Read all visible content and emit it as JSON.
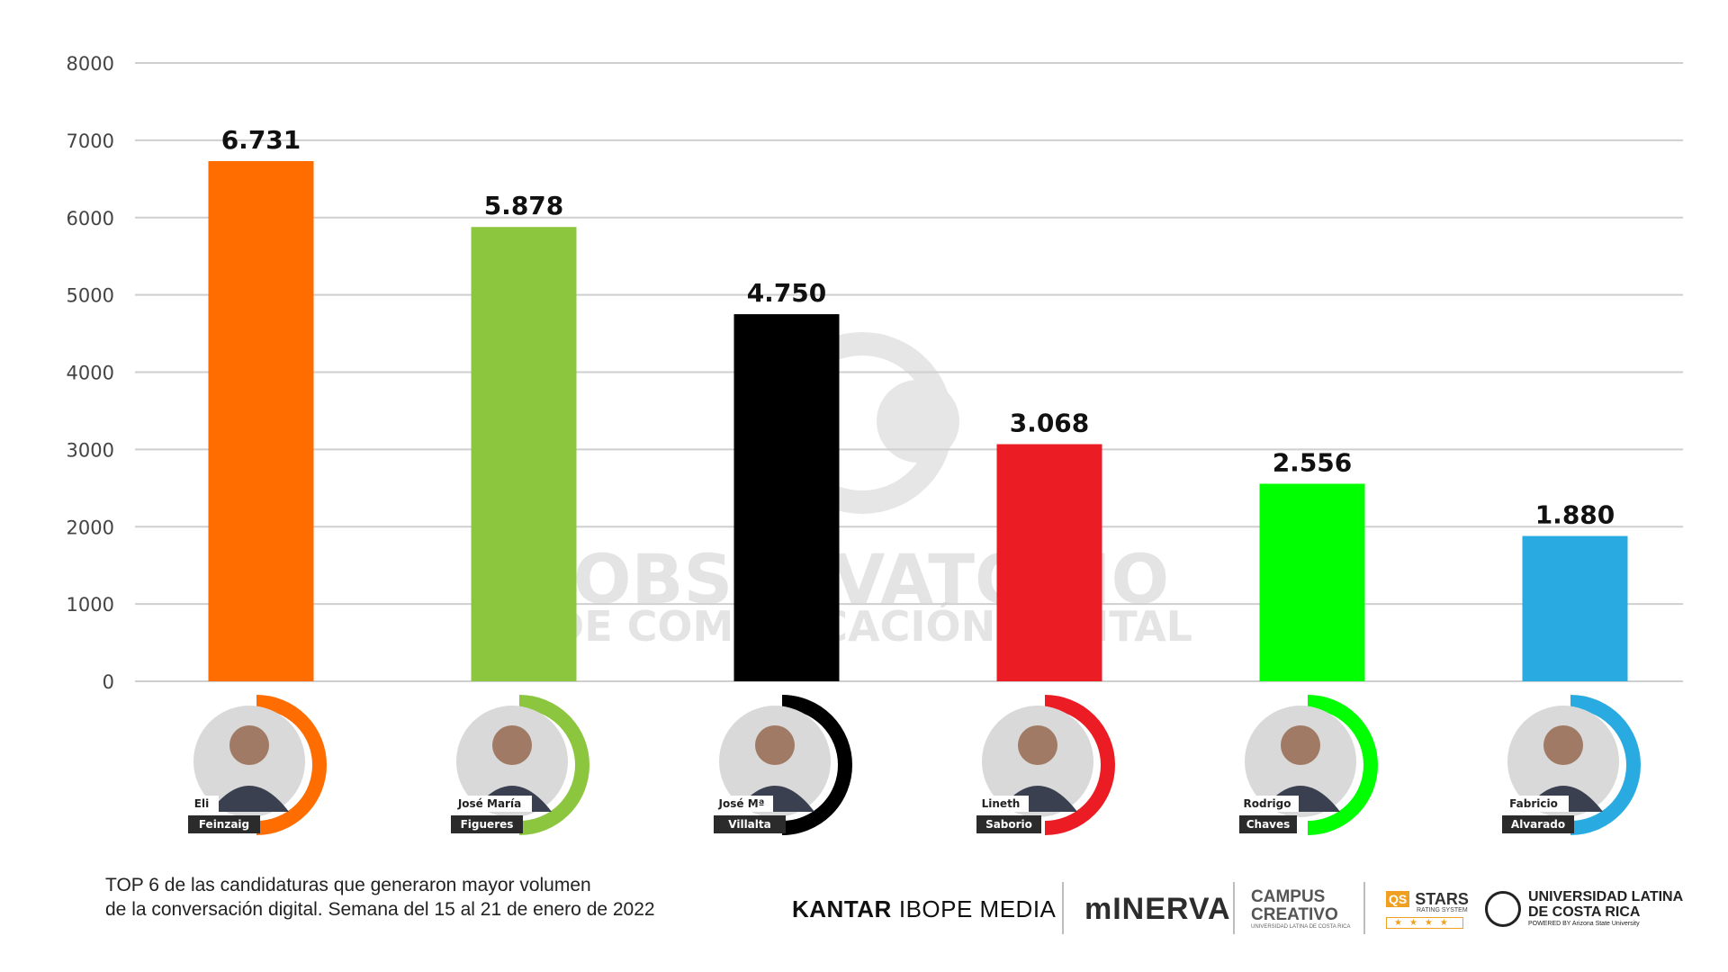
{
  "chart_data": {
    "type": "bar",
    "categories": [
      "Eli Feinzaig",
      "José María Figueres",
      "José Mª Villalta",
      "Lineth Saborío",
      "Rodrigo Chaves",
      "Fabricio Alvarado"
    ],
    "values": [
      6731,
      5878,
      4750,
      3068,
      2556,
      1880
    ],
    "value_labels": [
      "6.731",
      "5.878",
      "4.750",
      "3.068",
      "2.556",
      "1.880"
    ],
    "colors": [
      "#ff6d00",
      "#8cc63f",
      "#000000",
      "#ec1c24",
      "#00ff00",
      "#29abe2"
    ],
    "yticks": [
      0,
      1000,
      2000,
      3000,
      4000,
      5000,
      6000,
      7000,
      8000
    ],
    "ylim": [
      0,
      8000
    ],
    "grid": true,
    "title": "",
    "xlabel": "",
    "ylabel": ""
  },
  "candidates": [
    {
      "first": "Eli",
      "last": "Feinzaig"
    },
    {
      "first": "José María",
      "last": "Figueres"
    },
    {
      "first": "José Mª",
      "last": "Villalta"
    },
    {
      "first": "Lineth",
      "last": "Saborio"
    },
    {
      "first": "Rodrigo",
      "last": "Chaves"
    },
    {
      "first": "Fabricio",
      "last": "Alvarado"
    }
  ],
  "watermark": {
    "line1": "OBSERVATORIO",
    "line2": "DE COMUNICACIÓN DIGITAL"
  },
  "caption": {
    "line1": "TOP 6 de las candidaturas que generaron mayor volumen",
    "line2": "de la conversación digital. Semana del 15 al 21 de enero de 2022"
  },
  "logos": {
    "kantar_bold": "KANTAR",
    "kantar_light": "IBOPE MEDIA",
    "minerva": "mINERVA",
    "campus_line1": "CAMPUS",
    "campus_line2": "CREATIVO",
    "campus_sub": "UNIVERSIDAD LATINA DE COSTA RICA",
    "qs": "QS",
    "stars": "STARS",
    "stars_sub": "RATING SYSTEM",
    "stars_rating": "★★★★",
    "ulatina_line1": "UNIVERSIDAD LATINA",
    "ulatina_line2": "DE COSTA RICA",
    "ulatina_sub": "POWERED BY Arizona State University"
  }
}
